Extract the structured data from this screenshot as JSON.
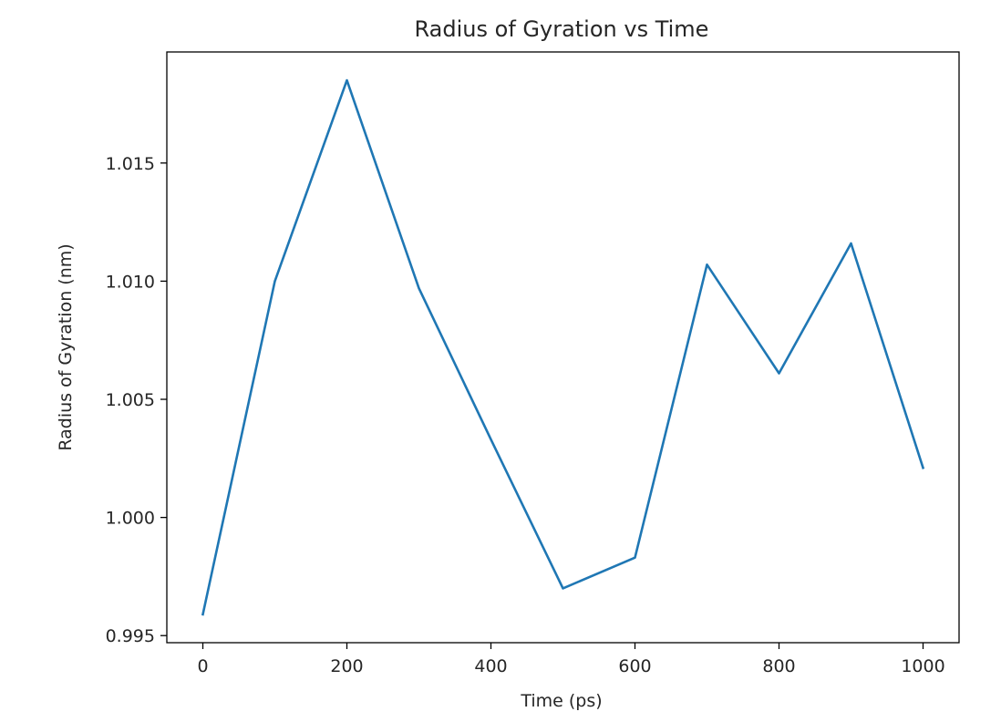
{
  "chart_data": {
    "type": "line",
    "title": "Radius of Gyration vs Time",
    "xlabel": "Time (ps)",
    "ylabel": "Radius of Gyration (nm)",
    "xlim": [
      -50,
      1050
    ],
    "ylim": [
      0.9947,
      1.0197
    ],
    "x_ticks": [
      0,
      200,
      400,
      600,
      800,
      1000
    ],
    "y_ticks": [
      0.995,
      1.0,
      1.005,
      1.01,
      1.015
    ],
    "x_tick_labels": [
      "0",
      "200",
      "400",
      "600",
      "800",
      "1000"
    ],
    "y_tick_labels": [
      "0.995",
      "1.000",
      "1.005",
      "1.010",
      "1.015"
    ],
    "grid": false,
    "series": [
      {
        "color": "#1f77b4",
        "x": [
          0,
          100,
          200,
          300,
          400,
          500,
          600,
          700,
          800,
          900,
          1000
        ],
        "y": [
          0.9959,
          1.01,
          1.0185,
          1.0097,
          1.0033,
          0.997,
          0.9983,
          1.0107,
          1.0061,
          1.0116,
          1.0021
        ]
      }
    ]
  }
}
